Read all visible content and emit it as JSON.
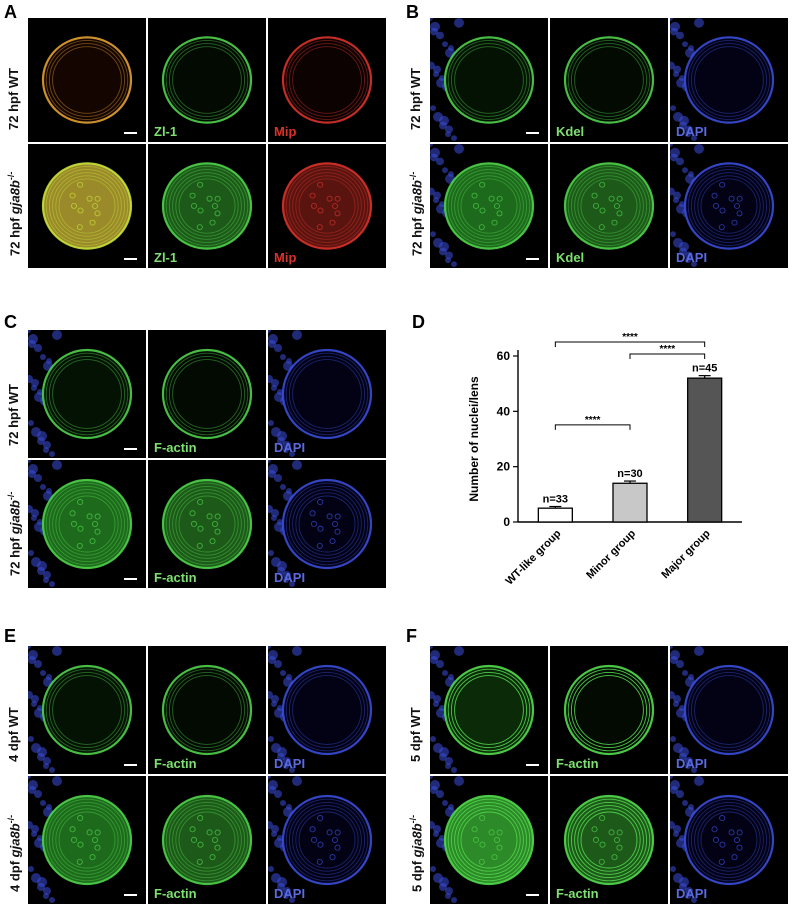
{
  "panels": {
    "A": {
      "letter": "A",
      "rows": [
        {
          "label_prefix": "72 hpf ",
          "label_italic": "",
          "label_sup": "",
          "label_text": "WT"
        },
        {
          "label_prefix": "72 hpf ",
          "label_italic": "gja8b",
          "label_sup": "-/-",
          "label_text": ""
        }
      ],
      "channel_labels": [
        "Zl-1",
        "Mip"
      ]
    },
    "B": {
      "letter": "B",
      "rows": [
        {
          "label_prefix": "72 hpf ",
          "label_italic": "",
          "label_sup": "",
          "label_text": "WT"
        },
        {
          "label_prefix": "72 hpf ",
          "label_italic": "gja8b",
          "label_sup": "-/-",
          "label_text": ""
        }
      ],
      "channel_labels": [
        "Kdel",
        "DAPI"
      ]
    },
    "C": {
      "letter": "C",
      "rows": [
        {
          "label_prefix": "72 hpf ",
          "label_italic": "",
          "label_sup": "",
          "label_text": "WT"
        },
        {
          "label_prefix": "72 hpf ",
          "label_italic": "gja8b",
          "label_sup": "-/-",
          "label_text": ""
        }
      ],
      "channel_labels": [
        "F-actin",
        "DAPI"
      ]
    },
    "D": {
      "letter": "D"
    },
    "E": {
      "letter": "E",
      "rows": [
        {
          "label_prefix": "4 dpf ",
          "label_italic": "",
          "label_sup": "",
          "label_text": "WT"
        },
        {
          "label_prefix": "4 dpf ",
          "label_italic": "gja8b",
          "label_sup": "-/-",
          "label_text": ""
        }
      ],
      "channel_labels": [
        "F-actin",
        "DAPI"
      ]
    },
    "F": {
      "letter": "F",
      "rows": [
        {
          "label_prefix": "5 dpf ",
          "label_italic": "",
          "label_sup": "",
          "label_text": "WT"
        },
        {
          "label_prefix": "5 dpf ",
          "label_italic": "gja8b",
          "label_sup": "-/-",
          "label_text": ""
        }
      ],
      "channel_labels": [
        "F-actin",
        "DAPI"
      ]
    }
  },
  "colors": {
    "green": "#4fd24a",
    "red": "#d8322a",
    "blue": "#3a4cd8",
    "merge_ry": "#e0a030",
    "bar_white": "#ffffff",
    "bar_light": "#c8c8c8",
    "bar_dark": "#555555"
  },
  "chart_data": {
    "type": "bar",
    "categories": [
      "WT-like group",
      "Minor group",
      "Major group"
    ],
    "values": [
      5,
      14,
      52
    ],
    "errors": [
      0.6,
      0.8,
      0.9
    ],
    "n_labels": [
      "n=33",
      "n=30",
      "n=45"
    ],
    "ylabel": "Number of nuclei/lens",
    "xlabel": "",
    "ylim": [
      0,
      60
    ],
    "yticks": [
      0,
      20,
      40,
      60
    ],
    "significance": [
      {
        "from": 0,
        "to": 1,
        "label": "****"
      },
      {
        "from": 0,
        "to": 2,
        "label": "****"
      },
      {
        "from": 1,
        "to": 2,
        "label": "****"
      }
    ]
  }
}
